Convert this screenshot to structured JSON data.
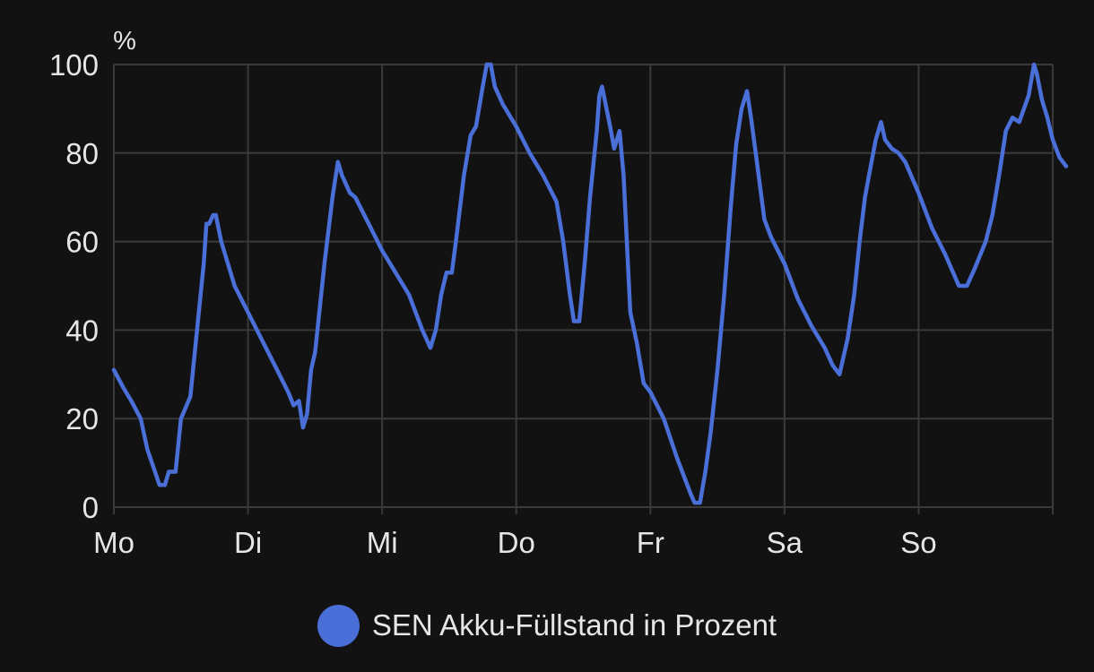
{
  "chart_data": {
    "type": "line",
    "unit_label": "%",
    "ylim": [
      0,
      100
    ],
    "yticks": [
      0,
      20,
      40,
      60,
      80,
      100
    ],
    "xlim": [
      0,
      7
    ],
    "xticks": [
      {
        "value": 0,
        "label": "Mo"
      },
      {
        "value": 1,
        "label": "Di"
      },
      {
        "value": 2,
        "label": "Mi"
      },
      {
        "value": 3,
        "label": "Do"
      },
      {
        "value": 4,
        "label": "Fr"
      },
      {
        "value": 5,
        "label": "Sa"
      },
      {
        "value": 6,
        "label": "So"
      }
    ],
    "grid": true,
    "legend_position": "bottom",
    "series": [
      {
        "name": "SEN Akku-Füllstand in Prozent",
        "color": "#4a6fd8",
        "points": [
          [
            0.0,
            31
          ],
          [
            0.07,
            27
          ],
          [
            0.13,
            24
          ],
          [
            0.2,
            20
          ],
          [
            0.25,
            13
          ],
          [
            0.34,
            5
          ],
          [
            0.38,
            5
          ],
          [
            0.41,
            8
          ],
          [
            0.46,
            8
          ],
          [
            0.5,
            20
          ],
          [
            0.57,
            25
          ],
          [
            0.64,
            46
          ],
          [
            0.67,
            55
          ],
          [
            0.69,
            64
          ],
          [
            0.71,
            64
          ],
          [
            0.74,
            66
          ],
          [
            0.76,
            66
          ],
          [
            0.8,
            60
          ],
          [
            0.9,
            50
          ],
          [
            1.0,
            44
          ],
          [
            1.1,
            38
          ],
          [
            1.2,
            32
          ],
          [
            1.3,
            26
          ],
          [
            1.34,
            23
          ],
          [
            1.38,
            24
          ],
          [
            1.41,
            18
          ],
          [
            1.44,
            21
          ],
          [
            1.47,
            31
          ],
          [
            1.5,
            35
          ],
          [
            1.57,
            55
          ],
          [
            1.63,
            70
          ],
          [
            1.67,
            78
          ],
          [
            1.7,
            75
          ],
          [
            1.76,
            71
          ],
          [
            1.8,
            70
          ],
          [
            1.9,
            64
          ],
          [
            2.0,
            58
          ],
          [
            2.1,
            53
          ],
          [
            2.2,
            48
          ],
          [
            2.3,
            40
          ],
          [
            2.36,
            36
          ],
          [
            2.4,
            40
          ],
          [
            2.44,
            48
          ],
          [
            2.48,
            53
          ],
          [
            2.52,
            53
          ],
          [
            2.55,
            60
          ],
          [
            2.61,
            75
          ],
          [
            2.66,
            84
          ],
          [
            2.7,
            86
          ],
          [
            2.75,
            95
          ],
          [
            2.78,
            100
          ],
          [
            2.81,
            100
          ],
          [
            2.84,
            95
          ],
          [
            2.9,
            91
          ],
          [
            3.0,
            86
          ],
          [
            3.1,
            80
          ],
          [
            3.2,
            75
          ],
          [
            3.3,
            69
          ],
          [
            3.35,
            60
          ],
          [
            3.4,
            48
          ],
          [
            3.43,
            42
          ],
          [
            3.47,
            42
          ],
          [
            3.51,
            55
          ],
          [
            3.55,
            70
          ],
          [
            3.6,
            85
          ],
          [
            3.62,
            93
          ],
          [
            3.64,
            95
          ],
          [
            3.7,
            86
          ],
          [
            3.73,
            81
          ],
          [
            3.77,
            85
          ],
          [
            3.8,
            75
          ],
          [
            3.85,
            44
          ],
          [
            3.9,
            37
          ],
          [
            3.95,
            28
          ],
          [
            4.0,
            26
          ],
          [
            4.1,
            20
          ],
          [
            4.2,
            11
          ],
          [
            4.3,
            3
          ],
          [
            4.33,
            1
          ],
          [
            4.37,
            1
          ],
          [
            4.41,
            8
          ],
          [
            4.45,
            17
          ],
          [
            4.5,
            31
          ],
          [
            4.55,
            48
          ],
          [
            4.6,
            68
          ],
          [
            4.64,
            82
          ],
          [
            4.68,
            90
          ],
          [
            4.72,
            94
          ],
          [
            4.75,
            88
          ],
          [
            4.79,
            79
          ],
          [
            4.85,
            65
          ],
          [
            4.9,
            61
          ],
          [
            5.0,
            55
          ],
          [
            5.1,
            47
          ],
          [
            5.2,
            41
          ],
          [
            5.3,
            36
          ],
          [
            5.36,
            32
          ],
          [
            5.41,
            30
          ],
          [
            5.47,
            38
          ],
          [
            5.52,
            48
          ],
          [
            5.56,
            60
          ],
          [
            5.6,
            70
          ],
          [
            5.63,
            75
          ],
          [
            5.68,
            83
          ],
          [
            5.72,
            87
          ],
          [
            5.75,
            83
          ],
          [
            5.8,
            81
          ],
          [
            5.85,
            80
          ],
          [
            5.9,
            78
          ],
          [
            6.0,
            71
          ],
          [
            6.1,
            63
          ],
          [
            6.2,
            57
          ],
          [
            6.3,
            50
          ],
          [
            6.36,
            50
          ],
          [
            6.42,
            54
          ],
          [
            6.5,
            60
          ],
          [
            6.55,
            66
          ],
          [
            6.6,
            75
          ],
          [
            6.65,
            85
          ],
          [
            6.7,
            88
          ],
          [
            6.75,
            87
          ],
          [
            6.82,
            93
          ],
          [
            6.86,
            100
          ],
          [
            6.88,
            98
          ],
          [
            6.92,
            92
          ],
          [
            6.96,
            88
          ],
          [
            7.0,
            83
          ],
          [
            7.05,
            79
          ],
          [
            7.1,
            77
          ]
        ]
      }
    ]
  }
}
